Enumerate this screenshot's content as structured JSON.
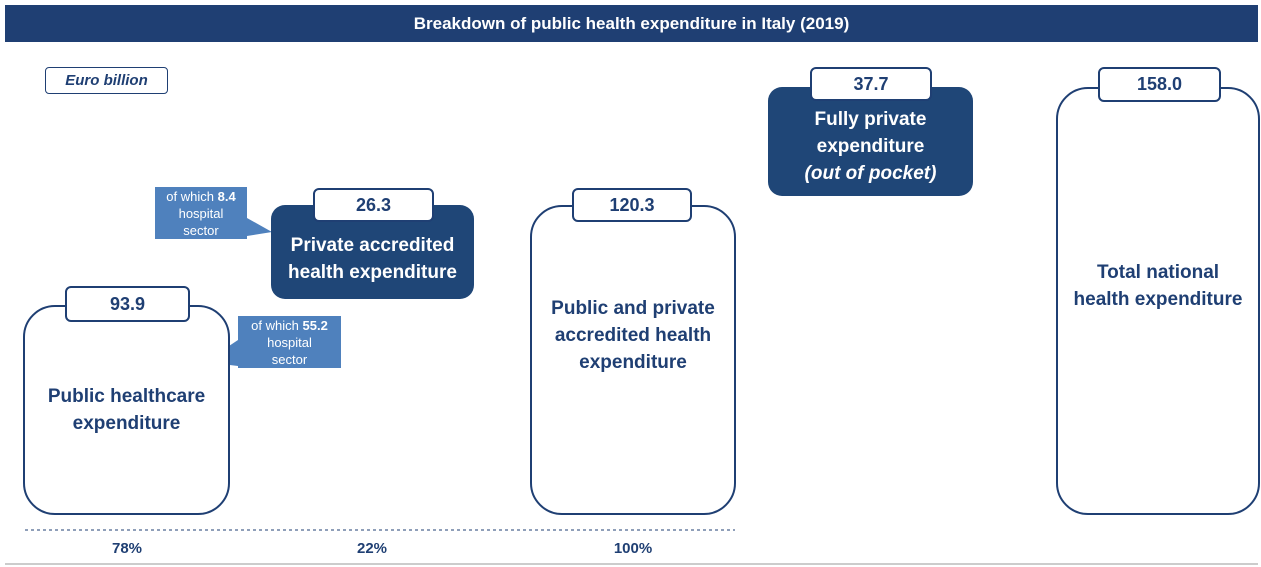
{
  "header": {
    "title": "Breakdown of public health expenditure in Italy (2019)",
    "unit": "Euro billion"
  },
  "boxes": [
    {
      "value": "93.9",
      "lines": [
        "Public healthcare",
        "expenditure"
      ]
    },
    {
      "value": "26.3",
      "lines": [
        "Private accredited",
        "health expenditure"
      ]
    },
    {
      "value": "120.3",
      "lines": [
        "Public and private",
        "accredited health",
        "expenditure"
      ]
    },
    {
      "value": "37.7",
      "lines": [
        "Fully private",
        "expenditure"
      ],
      "note": "(out of pocket)"
    },
    {
      "value": "158.0",
      "lines": [
        "Total national",
        "health expenditure"
      ]
    }
  ],
  "callouts": [
    {
      "prefix": "of which",
      "value": "8.4",
      "lines": [
        "hospital",
        "sector"
      ]
    },
    {
      "prefix": "of which",
      "value": "55.2",
      "lines": [
        "hospital",
        "sector"
      ]
    }
  ],
  "shares": [
    "78%",
    "22%",
    "100%"
  ]
}
